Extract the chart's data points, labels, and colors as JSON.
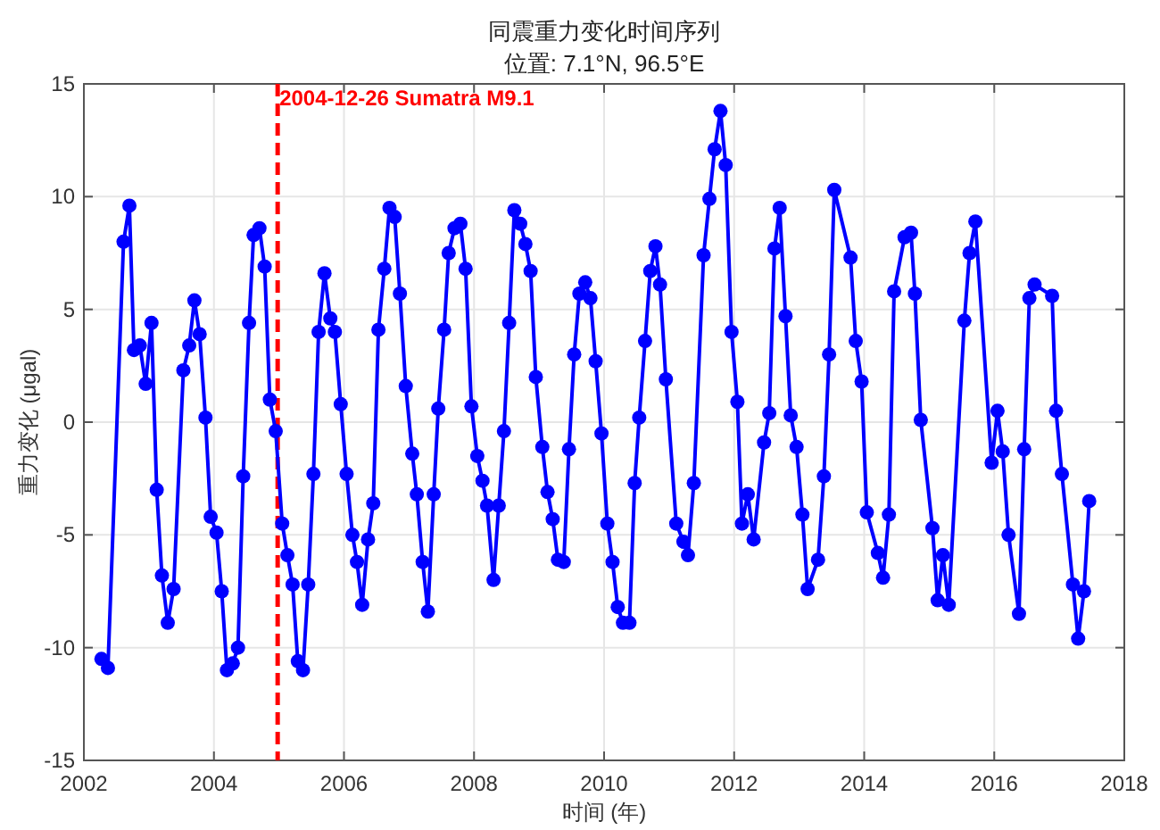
{
  "chart_data": {
    "type": "line",
    "title": "同震重力变化时间序列",
    "subtitle": "位置: 7.1°N, 96.5°E",
    "xlabel": "时间 (年)",
    "ylabel": "重力变化 (μgal)",
    "x": [
      2002.27,
      2002.37,
      2002.61,
      2002.7,
      2002.77,
      2002.86,
      2002.95,
      2003.04,
      2003.12,
      2003.2,
      2003.29,
      2003.38,
      2003.53,
      2003.62,
      2003.7,
      2003.78,
      2003.87,
      2003.95,
      2004.04,
      2004.12,
      2004.2,
      2004.29,
      2004.37,
      2004.45,
      2004.54,
      2004.61,
      2004.7,
      2004.78,
      2004.86,
      2004.95,
      2005.05,
      2005.13,
      2005.21,
      2005.29,
      2005.37,
      2005.45,
      2005.53,
      2005.61,
      2005.7,
      2005.79,
      2005.86,
      2005.95,
      2006.04,
      2006.13,
      2006.2,
      2006.28,
      2006.37,
      2006.45,
      2006.53,
      2006.62,
      2006.7,
      2006.78,
      2006.86,
      2006.95,
      2007.05,
      2007.12,
      2007.21,
      2007.29,
      2007.38,
      2007.45,
      2007.54,
      2007.61,
      2007.7,
      2007.79,
      2007.87,
      2007.96,
      2008.05,
      2008.13,
      2008.2,
      2008.3,
      2008.38,
      2008.46,
      2008.54,
      2008.62,
      2008.71,
      2008.79,
      2008.87,
      2008.95,
      2009.05,
      2009.13,
      2009.21,
      2009.29,
      2009.38,
      2009.46,
      2009.54,
      2009.62,
      2009.71,
      2009.79,
      2009.87,
      2009.96,
      2010.05,
      2010.13,
      2010.21,
      2010.29,
      2010.39,
      2010.47,
      2010.54,
      2010.63,
      2010.71,
      2010.79,
      2010.86,
      2010.95,
      2011.11,
      2011.22,
      2011.29,
      2011.38,
      2011.53,
      2011.62,
      2011.7,
      2011.79,
      2011.87,
      2011.96,
      2012.05,
      2012.12,
      2012.21,
      2012.3,
      2012.46,
      2012.54,
      2012.62,
      2012.7,
      2012.79,
      2012.87,
      2012.96,
      2013.05,
      2013.13,
      2013.29,
      2013.38,
      2013.46,
      2013.54,
      2013.79,
      2013.87,
      2013.96,
      2014.04,
      2014.21,
      2014.29,
      2014.38,
      2014.46,
      2014.62,
      2014.72,
      2014.78,
      2014.87,
      2015.05,
      2015.13,
      2015.21,
      2015.3,
      2015.54,
      2015.62,
      2015.71,
      2015.96,
      2016.05,
      2016.13,
      2016.22,
      2016.38,
      2016.46,
      2016.54,
      2016.62,
      2016.89,
      2016.95,
      2017.04,
      2017.21,
      2017.29,
      2017.38,
      2017.46
    ],
    "series": [
      {
        "color": "#0000ff",
        "values": [
          -10.5,
          -10.9,
          8.0,
          9.6,
          3.2,
          3.4,
          1.7,
          4.4,
          -3.0,
          -6.8,
          -8.9,
          -7.4,
          2.3,
          3.4,
          5.4,
          3.9,
          0.2,
          -4.2,
          -4.9,
          -7.5,
          -11.0,
          -10.7,
          -10.0,
          -2.4,
          4.4,
          8.3,
          8.6,
          6.9,
          1.0,
          -0.4,
          -4.5,
          -5.9,
          -7.2,
          -10.6,
          -11.0,
          -7.2,
          -2.3,
          4.0,
          6.6,
          4.6,
          4.0,
          0.8,
          -2.3,
          -5.0,
          -6.2,
          -8.1,
          -5.2,
          -3.6,
          4.1,
          6.8,
          9.5,
          9.1,
          5.7,
          1.6,
          -1.4,
          -3.2,
          -6.2,
          -8.4,
          -3.2,
          0.6,
          4.1,
          7.5,
          8.6,
          8.8,
          6.8,
          0.7,
          -1.5,
          -2.6,
          -3.7,
          -7.0,
          -3.7,
          -0.4,
          4.4,
          9.4,
          8.8,
          7.9,
          6.7,
          2.0,
          -1.1,
          -3.1,
          -4.3,
          -6.1,
          -6.2,
          -1.2,
          3.0,
          5.7,
          6.2,
          5.5,
          2.7,
          -0.5,
          -4.5,
          -6.2,
          -8.2,
          -8.9,
          -8.9,
          -2.7,
          0.2,
          3.6,
          6.7,
          7.8,
          6.1,
          1.9,
          -4.5,
          -5.3,
          -5.9,
          -2.7,
          7.4,
          9.9,
          12.1,
          13.8,
          11.4,
          4.0,
          0.9,
          -4.5,
          -3.2,
          -5.2,
          -0.9,
          0.4,
          7.7,
          9.5,
          4.7,
          0.3,
          -1.1,
          -4.1,
          -7.4,
          -6.1,
          -2.4,
          3.0,
          10.3,
          7.3,
          3.6,
          1.8,
          -4.0,
          -5.8,
          -6.9,
          -4.1,
          5.8,
          8.2,
          8.4,
          5.7,
          0.1,
          -4.7,
          -7.9,
          -5.9,
          -8.1,
          4.5,
          7.5,
          8.9,
          -1.8,
          0.5,
          -1.3,
          -5.0,
          -8.5,
          -1.2,
          5.5,
          6.1,
          5.6,
          0.5,
          -2.3,
          -7.2,
          -9.6,
          -7.5,
          -3.5
        ]
      }
    ],
    "xlim": [
      2002,
      2018
    ],
    "ylim": [
      -15,
      15
    ],
    "xticks": [
      2002,
      2004,
      2006,
      2008,
      2010,
      2012,
      2014,
      2016,
      2018
    ],
    "yticks": [
      -15,
      -10,
      -5,
      0,
      5,
      10,
      15
    ],
    "grid": true,
    "marker": "circle",
    "line_style": "solid",
    "ref_lines": [
      {
        "axis": "x",
        "value": 2004.98,
        "label": "2004-12-26 Sumatra M9.1",
        "color": "#ff0000",
        "line_style": "dashed"
      }
    ]
  }
}
